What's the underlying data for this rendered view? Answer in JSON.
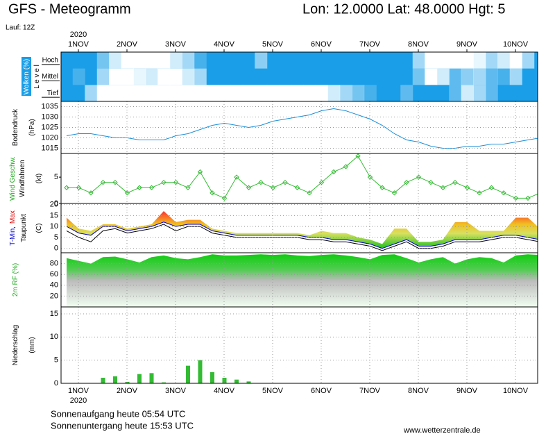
{
  "header": {
    "title": "GFS - Meteogramm",
    "location": "Lon: 12.0000 Lat: 48.0000 Hgt: 5",
    "run": "Lauf: 12Z"
  },
  "x_axis": {
    "year": "2020",
    "labels": [
      "1NOV",
      "2NOV",
      "3NOV",
      "4NOV",
      "5NOV",
      "6NOV",
      "7NOV",
      "8NOV",
      "9NOV",
      "10NOV"
    ]
  },
  "footer": {
    "sunrise": "Sonnenaufgang heute 05:54 UTC",
    "sunset": "Sonnenuntergang heute 15:53 UTC",
    "source": "www.wetterzentrale.de"
  },
  "chart_data": [
    {
      "type": "heatmap",
      "ylabel": [
        [
          {
            "text": "Wolken (%)",
            "color": "#ffffff"
          }
        ],
        [
          {
            "text": "L e v e l",
            "color": "#000000"
          }
        ]
      ],
      "color": "#1a9ee8",
      "cloud_color": "#ffffff",
      "series": [
        {
          "name": "Hoch",
          "values": [
            0,
            0,
            0,
            40,
            80,
            100,
            100,
            100,
            100,
            80,
            60,
            20,
            0,
            0,
            0,
            0,
            50,
            0,
            0,
            0,
            0,
            0,
            0,
            0,
            0,
            0,
            0,
            0,
            0,
            60,
            100,
            100,
            100,
            100,
            90,
            60,
            80,
            100,
            60,
            0
          ]
        },
        {
          "name": "Mittel",
          "values": [
            0,
            20,
            0,
            60,
            100,
            100,
            90,
            80,
            100,
            100,
            80,
            60,
            0,
            0,
            0,
            0,
            0,
            0,
            0,
            0,
            0,
            0,
            0,
            0,
            0,
            0,
            0,
            0,
            0,
            40,
            100,
            80,
            30,
            50,
            60,
            30,
            20,
            60,
            0,
            0
          ]
        },
        {
          "name": "Tief",
          "values": [
            0,
            0,
            60,
            100,
            100,
            100,
            100,
            100,
            100,
            100,
            100,
            100,
            100,
            100,
            100,
            100,
            100,
            100,
            100,
            100,
            100,
            100,
            80,
            60,
            40,
            20,
            0,
            0,
            30,
            0,
            0,
            0,
            30,
            80,
            60,
            30,
            0,
            0,
            0,
            0
          ]
        }
      ]
    },
    {
      "type": "line",
      "ylabel": [
        [
          {
            "text": "Bodendruck",
            "color": "#000000"
          }
        ],
        [
          {
            "text": "(hPa)",
            "color": "#000000"
          }
        ]
      ],
      "ylim": [
        1012.5,
        1037.5
      ],
      "yticks": [
        1015,
        1020,
        1025,
        1030,
        1035
      ],
      "grid": true,
      "series": [
        {
          "color": "#1a8fd8",
          "markers": false,
          "values": [
            1021,
            1022,
            1022,
            1021,
            1020,
            1020,
            1019,
            1019,
            1019,
            1021,
            1022,
            1024,
            1026,
            1027,
            1026,
            1025,
            1026,
            1028,
            1029,
            1030,
            1031,
            1033,
            1034,
            1033,
            1031,
            1029,
            1026,
            1022,
            1019,
            1018,
            1016,
            1015,
            1015,
            1016,
            1016,
            1017,
            1017,
            1018,
            1019,
            1020
          ]
        }
      ]
    },
    {
      "type": "line",
      "ylabel": [
        [
          {
            "text": "Wind Geschw.",
            "color": "#22aa22"
          }
        ],
        [
          {
            "text": "Windfahnen",
            "color": "#000000"
          }
        ],
        [
          {
            "text": "(kt)",
            "color": "#000000"
          }
        ]
      ],
      "ylim": [
        0,
        9.5
      ],
      "yticks": [
        0,
        5
      ],
      "grid": false,
      "series": [
        {
          "color": "#33bb33",
          "markers": true,
          "values": [
            3,
            3,
            2,
            4,
            4,
            2,
            3,
            3,
            4,
            4,
            3,
            6,
            2,
            1,
            5,
            3,
            4,
            3,
            4,
            3,
            2,
            4,
            6,
            7,
            9,
            5,
            3,
            2,
            4,
            5,
            4,
            3,
            4,
            3,
            2,
            3,
            2,
            1,
            1,
            2
          ]
        }
      ]
    },
    {
      "type": "band",
      "ylabel": [
        [
          {
            "text": "T-Min,",
            "color": "#0000cc"
          },
          {
            "text": "Max",
            "color": "#dd0000"
          }
        ],
        [
          {
            "text": "Taupunkt",
            "color": "#000000"
          }
        ],
        [
          {
            "text": "(C)",
            "color": "#000000"
          }
        ]
      ],
      "ylim": [
        -2,
        20.5
      ],
      "yticks": [
        0,
        5,
        10,
        15,
        20
      ],
      "grid": true,
      "series": [
        {
          "color": "#e88a2a",
          "values": [
            14,
            9,
            8,
            11,
            11,
            9,
            10,
            11,
            17,
            12,
            13,
            13,
            9,
            8,
            7,
            7,
            7,
            7,
            7,
            7,
            6,
            8,
            7,
            7,
            5,
            4,
            2,
            9,
            9,
            3,
            3,
            4,
            12,
            12,
            8,
            8,
            8,
            14,
            14,
            9
          ]
        },
        {
          "color": "#0000cc",
          "values": [
            10,
            7,
            6,
            10,
            10,
            8,
            9,
            10,
            12,
            10,
            11,
            11,
            8,
            7,
            6,
            6,
            6,
            6,
            6,
            6,
            5,
            5,
            4,
            4,
            3,
            2,
            0,
            2,
            4,
            1,
            1,
            2,
            4,
            4,
            4,
            5,
            6,
            6,
            5,
            4
          ]
        },
        {
          "color": "#000000",
          "values": [
            8,
            5,
            3,
            8,
            9,
            7,
            8,
            9,
            11,
            8,
            10,
            10,
            7,
            6,
            5,
            5,
            5,
            5,
            5,
            5,
            4,
            4,
            3,
            3,
            2,
            1,
            -1,
            1,
            3,
            0,
            0,
            1,
            3,
            3,
            3,
            4,
            5,
            5,
            4,
            3
          ]
        }
      ]
    },
    {
      "type": "area",
      "ylabel": [
        [
          {
            "text": "2m RF (%)",
            "color": "#22aa22"
          }
        ]
      ],
      "ylim": [
        0,
        100
      ],
      "yticks": [
        20,
        40,
        60,
        80
      ],
      "grid": true,
      "series": [
        {
          "color": "#11cc11",
          "values": [
            90,
            85,
            80,
            92,
            93,
            88,
            82,
            92,
            95,
            90,
            88,
            92,
            97,
            95,
            95,
            96,
            97,
            96,
            97,
            95,
            94,
            96,
            97,
            95,
            92,
            88,
            96,
            97,
            90,
            82,
            88,
            92,
            80,
            88,
            92,
            90,
            82,
            95,
            97,
            96
          ]
        }
      ]
    },
    {
      "type": "bar",
      "ylabel": [
        [
          {
            "text": "Niederschlag",
            "color": "#000000"
          }
        ],
        [
          {
            "text": "(mm)",
            "color": "#000000"
          }
        ]
      ],
      "ylim": [
        0,
        16.5
      ],
      "yticks": [
        0,
        5,
        10,
        15
      ],
      "grid": true,
      "series": [
        {
          "color": "#33bb33",
          "values": [
            0,
            0,
            0,
            1.2,
            1.5,
            0.3,
            2.0,
            2.2,
            0.2,
            0,
            3.8,
            5.0,
            2.4,
            1.2,
            0.8,
            0.4,
            0,
            0,
            0,
            0,
            0,
            0,
            0,
            0,
            0,
            0,
            0,
            0,
            0,
            0,
            0,
            0,
            0,
            0,
            0,
            0,
            0,
            0,
            0,
            0
          ]
        }
      ]
    }
  ]
}
